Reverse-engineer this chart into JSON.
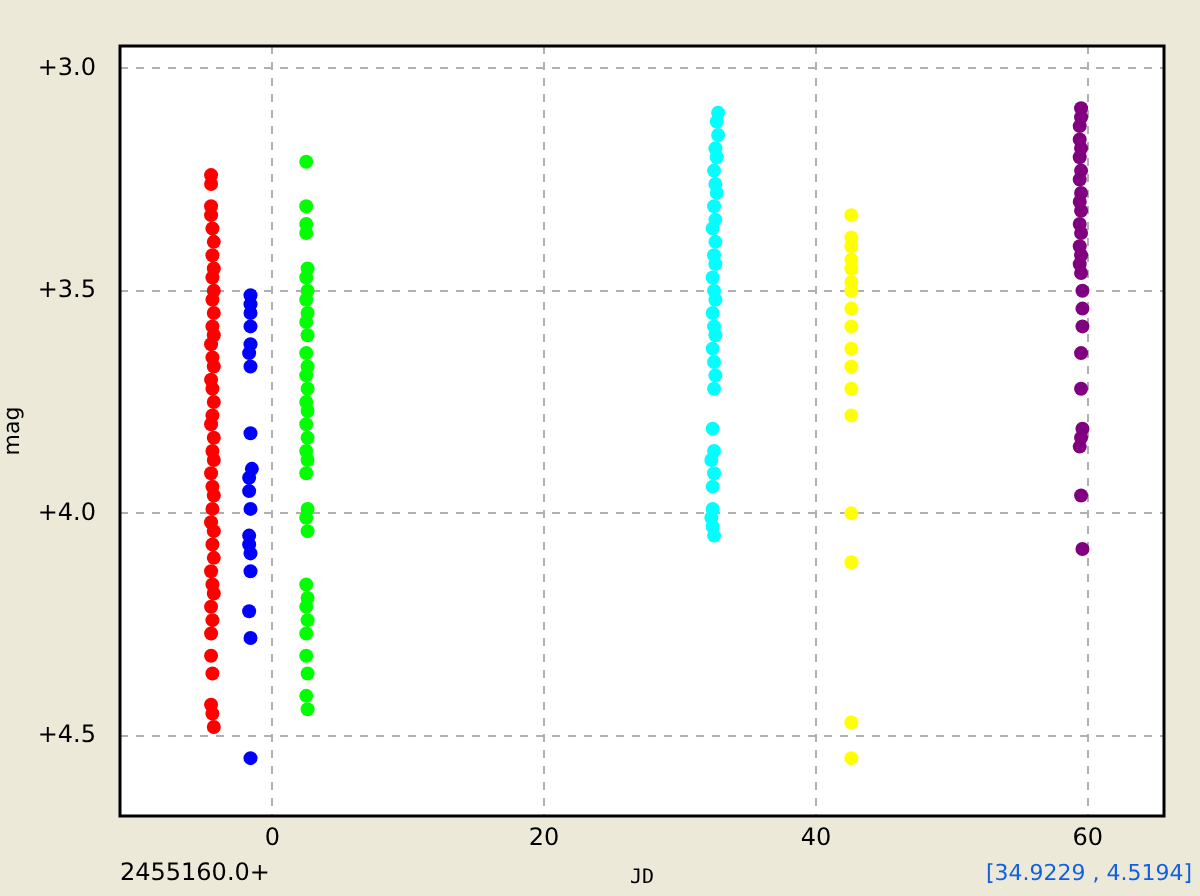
{
  "chart_data": {
    "type": "scatter",
    "xlabel": "JD",
    "ylabel": "mag",
    "annotations": [
      "2455160.0+",
      "[34.9229 , 4.5194]"
    ],
    "xlim": [
      -11.2,
      65.6
    ],
    "xticks": [
      0,
      20,
      40,
      60
    ],
    "ylim": [
      4.68,
      2.95
    ],
    "yticks": [
      {
        "value": 3,
        "label": "+3.0"
      },
      {
        "value": 3.5,
        "label": "+3.5"
      },
      {
        "value": 4,
        "label": "+4.0"
      },
      {
        "value": 4.5,
        "label": "+4.5"
      }
    ],
    "grid": true,
    "legend": false,
    "marker": "circle",
    "series": [
      {
        "color": "#ff0000",
        "x": [
          -4.5,
          -4.5,
          -4.5,
          -4.5,
          -4.4,
          -4.3,
          -4.4,
          -4.3,
          -4.4,
          -4.3,
          -4.4,
          -4.3,
          -4.4,
          -4.3,
          -4.5,
          -4.4,
          -4.3,
          -4.5,
          -4.4,
          -4.3,
          -4.4,
          -4.5,
          -4.3,
          -4.4,
          -4.3,
          -4.5,
          -4.4,
          -4.3,
          -4.4,
          -4.5,
          -4.3,
          -4.4,
          -4.3,
          -4.5,
          -4.4,
          -4.3,
          -4.5,
          -4.4,
          -4.5,
          -4.5,
          -4.4,
          -4.5,
          -4.4,
          -4.3
        ],
        "values": [
          3.24,
          3.26,
          3.31,
          3.33,
          3.36,
          3.39,
          3.42,
          3.45,
          3.47,
          3.5,
          3.52,
          3.55,
          3.58,
          3.6,
          3.62,
          3.65,
          3.67,
          3.7,
          3.72,
          3.75,
          3.78,
          3.8,
          3.83,
          3.86,
          3.88,
          3.91,
          3.94,
          3.96,
          3.99,
          4.02,
          4.04,
          4.07,
          4.1,
          4.13,
          4.16,
          4.18,
          4.21,
          4.24,
          4.27,
          4.32,
          4.36,
          4.43,
          4.45,
          4.48
        ]
      },
      {
        "color": "#0000ff",
        "x": [
          -1.6,
          -1.6,
          -1.6,
          -1.6,
          -1.6,
          -1.7,
          -1.6,
          -1.6,
          -1.5,
          -1.7,
          -1.7,
          -1.6,
          -1.7,
          -1.7,
          -1.6,
          -1.6,
          -1.7,
          -1.6,
          -1.6
        ],
        "values": [
          3.51,
          3.53,
          3.55,
          3.58,
          3.62,
          3.64,
          3.67,
          3.82,
          3.9,
          3.92,
          3.95,
          3.99,
          4.05,
          4.07,
          4.09,
          4.13,
          4.22,
          4.28,
          4.55
        ]
      },
      {
        "color": "#00ff00",
        "x": [
          2.5,
          2.5,
          2.5,
          2.5,
          2.6,
          2.5,
          2.6,
          2.5,
          2.6,
          2.5,
          2.6,
          2.5,
          2.6,
          2.5,
          2.6,
          2.5,
          2.6,
          2.5,
          2.6,
          2.5,
          2.6,
          2.5,
          2.6,
          2.5,
          2.6,
          2.5,
          2.6,
          2.5,
          2.6,
          2.5,
          2.5,
          2.6,
          2.5,
          2.6
        ],
        "values": [
          3.21,
          3.31,
          3.35,
          3.37,
          3.45,
          3.47,
          3.5,
          3.52,
          3.55,
          3.57,
          3.6,
          3.64,
          3.67,
          3.69,
          3.72,
          3.75,
          3.77,
          3.8,
          3.83,
          3.86,
          3.88,
          3.91,
          3.99,
          4.01,
          4.04,
          4.16,
          4.19,
          4.21,
          4.24,
          4.27,
          4.32,
          4.36,
          4.41,
          4.44
        ]
      },
      {
        "color": "#00ffff",
        "x": [
          32.8,
          32.7,
          32.8,
          32.6,
          32.7,
          32.5,
          32.6,
          32.7,
          32.5,
          32.6,
          32.4,
          32.6,
          32.5,
          32.6,
          32.4,
          32.5,
          32.6,
          32.4,
          32.5,
          32.6,
          32.4,
          32.5,
          32.6,
          32.5,
          32.4,
          32.5,
          32.3,
          32.5,
          32.4,
          32.4,
          32.3,
          32.4,
          32.5
        ],
        "values": [
          3.1,
          3.12,
          3.15,
          3.18,
          3.2,
          3.23,
          3.26,
          3.28,
          3.31,
          3.34,
          3.36,
          3.39,
          3.42,
          3.44,
          3.47,
          3.5,
          3.52,
          3.55,
          3.58,
          3.6,
          3.63,
          3.66,
          3.69,
          3.72,
          3.81,
          3.86,
          3.88,
          3.91,
          3.94,
          3.99,
          4.01,
          4.03,
          4.05
        ]
      },
      {
        "color": "#ffff00",
        "x": [
          42.6,
          42.6,
          42.6,
          42.6,
          42.6,
          42.6,
          42.6,
          42.6,
          42.6,
          42.6,
          42.6,
          42.6,
          42.6,
          42.6,
          42.6,
          42.6,
          42.6
        ],
        "values": [
          3.33,
          3.38,
          3.4,
          3.43,
          3.45,
          3.48,
          3.5,
          3.54,
          3.58,
          3.63,
          3.67,
          3.72,
          3.78,
          4.0,
          4.11,
          4.47,
          4.55
        ]
      },
      {
        "color": "#800080",
        "x": [
          59.5,
          59.5,
          59.4,
          59.4,
          59.5,
          59.4,
          59.5,
          59.4,
          59.5,
          59.4,
          59.5,
          59.4,
          59.5,
          59.4,
          59.5,
          59.4,
          59.5,
          59.6,
          59.6,
          59.6,
          59.5,
          59.5,
          59.6,
          59.5,
          59.4,
          59.5,
          59.6
        ],
        "values": [
          3.09,
          3.11,
          3.13,
          3.16,
          3.18,
          3.2,
          3.23,
          3.25,
          3.28,
          3.3,
          3.32,
          3.35,
          3.37,
          3.4,
          3.42,
          3.44,
          3.46,
          3.5,
          3.54,
          3.58,
          3.64,
          3.72,
          3.81,
          3.83,
          3.85,
          3.96,
          4.08
        ]
      }
    ]
  }
}
